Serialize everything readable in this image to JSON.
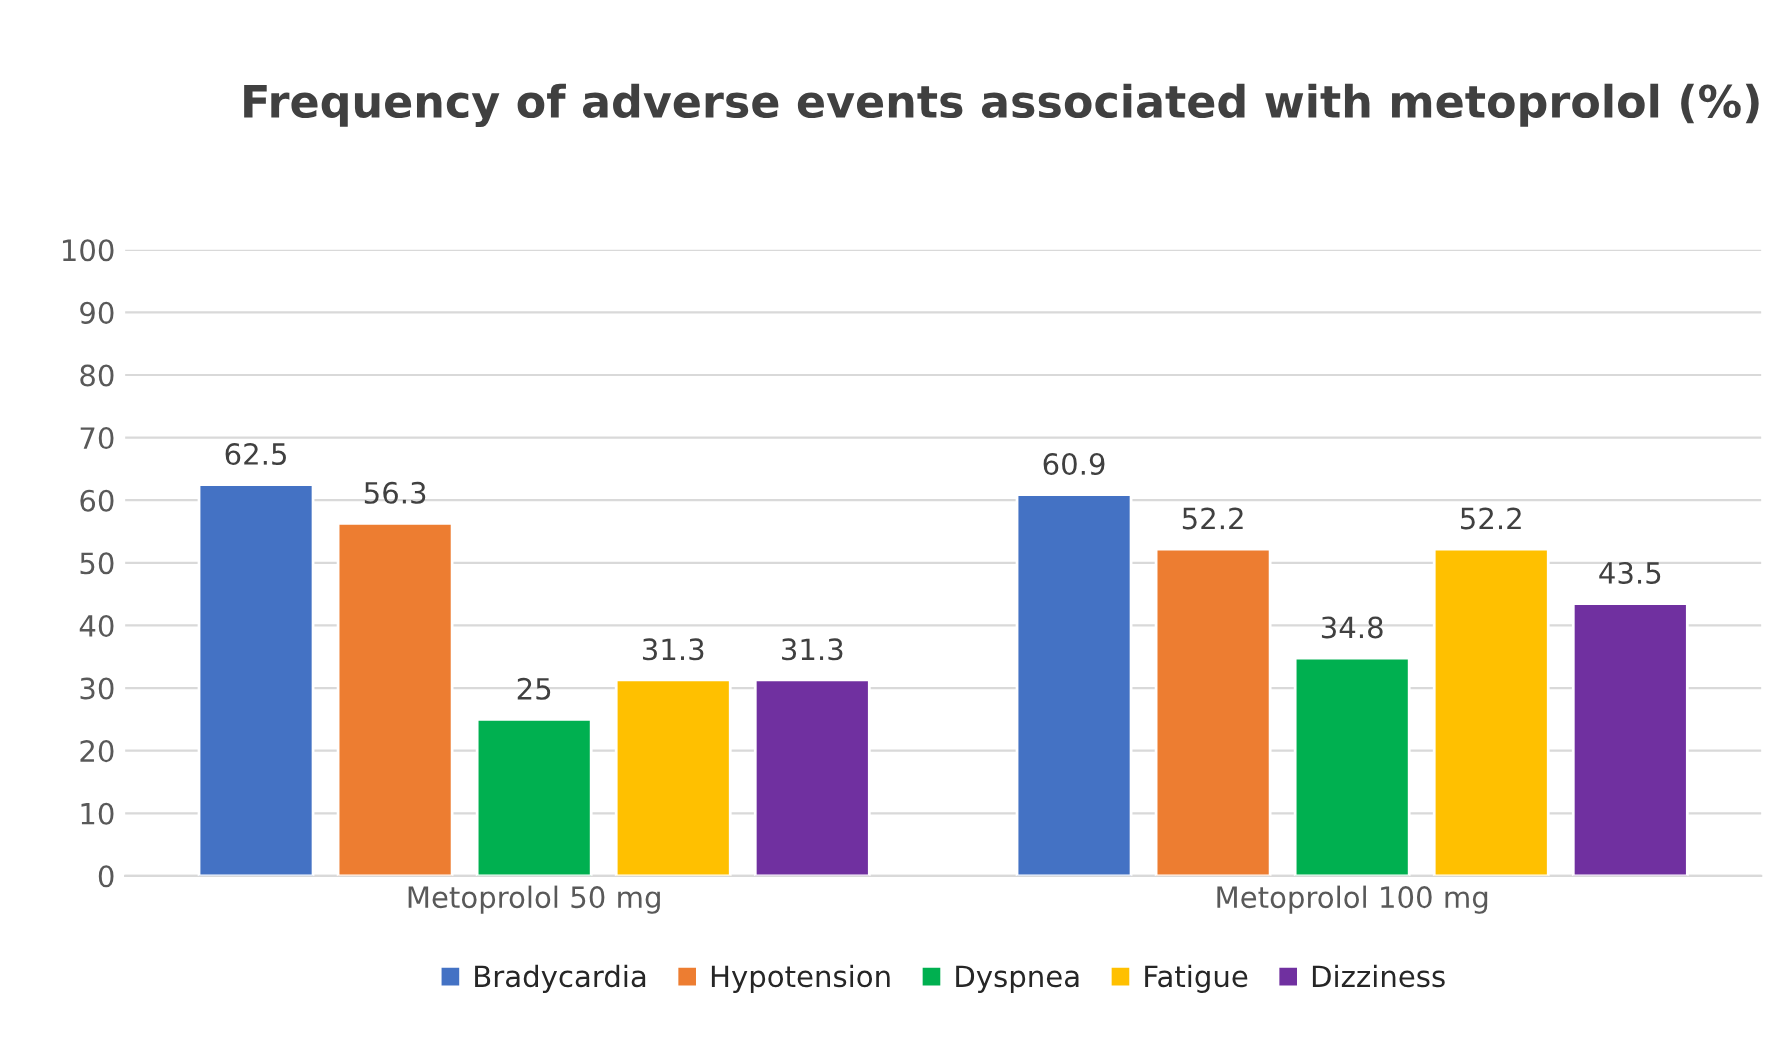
{
  "chart_data": {
    "type": "bar",
    "title": "Frequency of adverse events associated with metoprolol (%)",
    "categories": [
      "Metoprolol 50 mg",
      "Metoprolol 100 mg"
    ],
    "series": [
      {
        "name": "Bradycardia",
        "color": "#4472c4",
        "values": [
          62.5,
          60.9
        ]
      },
      {
        "name": "Hypotension",
        "color": "#ed7d31",
        "values": [
          56.3,
          52.2
        ]
      },
      {
        "name": "Dyspnea",
        "color": "#00b050",
        "values": [
          25,
          34.8
        ]
      },
      {
        "name": "Fatigue",
        "color": "#ffc000",
        "values": [
          31.3,
          52.2
        ]
      },
      {
        "name": "Dizziness",
        "color": "#7030a0",
        "values": [
          31.3,
          43.5
        ]
      }
    ],
    "ylim": [
      0,
      100
    ],
    "yticks": [
      0,
      10,
      20,
      30,
      40,
      50,
      60,
      70,
      80,
      90,
      100
    ],
    "grid": "y",
    "legend": "bottom",
    "data_labels": true
  }
}
